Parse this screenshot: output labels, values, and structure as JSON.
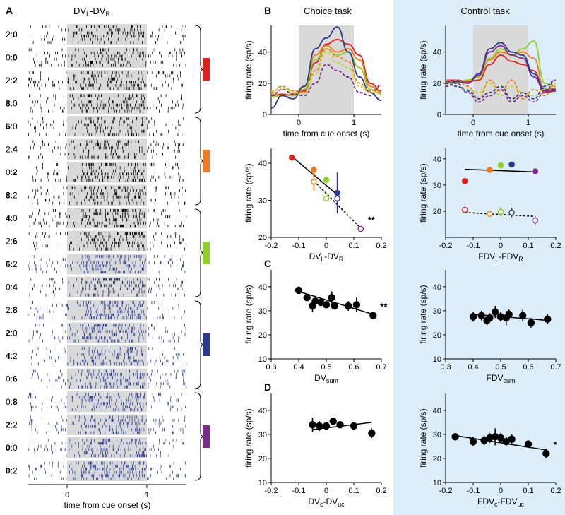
{
  "panel_letters": {
    "A": "A",
    "B": "B",
    "C": "C",
    "D": "D"
  },
  "raster": {
    "title_main": "DV",
    "title_sub1": "L",
    "title_mid": "-DV",
    "title_sub2": "R",
    "xlabel": "time from cue onset (s)",
    "xticks": [
      "0",
      "1"
    ],
    "rows": [
      {
        "a": "2:",
        "b": "0",
        "bold": "b",
        "color": "black"
      },
      {
        "a": "0:",
        "b": "0",
        "bold": "b",
        "color": "black"
      },
      {
        "a": "2:",
        "b": "2",
        "bold": "b",
        "color": "black"
      },
      {
        "a": "8",
        "b": ":0",
        "bold": "a",
        "color": "black"
      },
      {
        "a": "6",
        "b": ":0",
        "bold": "a",
        "color": "black"
      },
      {
        "a": "2:",
        "b": "4",
        "bold": "b",
        "color": "black"
      },
      {
        "a": "0:",
        "b": "2",
        "bold": "b",
        "color": "black"
      },
      {
        "a": "8",
        "b": ":2",
        "bold": "a",
        "color": "black"
      },
      {
        "a": "4",
        "b": ":0",
        "bold": "a",
        "color": "black"
      },
      {
        "a": "2:",
        "b": "6",
        "bold": "b",
        "color": "black"
      },
      {
        "a": "6",
        "b": ":2",
        "bold": "a",
        "color": "blue"
      },
      {
        "a": "0:",
        "b": "4",
        "bold": "b",
        "color": "mix"
      },
      {
        "a": "2:",
        "b": "8",
        "bold": "b",
        "color": "blue"
      },
      {
        "a": "2",
        "b": ":0",
        "bold": "a",
        "color": "blue"
      },
      {
        "a": "4",
        "b": ":2",
        "bold": "a",
        "color": "blue"
      },
      {
        "a": "0:",
        "b": "6",
        "bold": "b",
        "color": "blue"
      },
      {
        "a": "0:",
        "b": "8",
        "bold": "b",
        "color": "blue"
      },
      {
        "a": "2",
        "b": ":2",
        "bold": "a",
        "color": "blue"
      },
      {
        "a": "0",
        "b": ":0",
        "bold": "a",
        "color": "blue"
      },
      {
        "a": "0",
        "b": ":2",
        "bold": "a",
        "color": "blue"
      }
    ],
    "group_colors": [
      "#e0201c",
      "#ef7a1f",
      "#8fcf2a",
      "#2d3a8c",
      "#7b2c8b"
    ]
  },
  "colors": {
    "red": "#e0201c",
    "orange": "#ef7a1f",
    "green": "#8fcf2a",
    "blue": "#2d3a8c",
    "purple": "#7b2c8b",
    "lime": "#c2d629",
    "raster_blue": "#2b3e96",
    "control_bg": "#ddeefa",
    "shade": "#d9d9d9"
  },
  "headers": {
    "choice": "Choice task",
    "control": "Control task"
  },
  "chart_data": [
    {
      "id": "B-choice-psth",
      "type": "line",
      "title": "Choice task",
      "xlabel": "time from cue onset (s)",
      "ylabel": "firing rate (sp/s)",
      "xlim": [
        -0.5,
        1.5
      ],
      "ylim": [
        0,
        57
      ],
      "xticks": [
        0,
        1
      ],
      "yticks": [
        0,
        20,
        40
      ],
      "shaded_interval": [
        0,
        1
      ],
      "x": [
        -0.5,
        -0.3,
        -0.1,
        0.1,
        0.3,
        0.5,
        0.7,
        0.9,
        1.1,
        1.3,
        1.5
      ],
      "series": [
        {
          "name": "red solid",
          "color": "#e0201c",
          "dash": false,
          "values": [
            12,
            13,
            12,
            15,
            33,
            45,
            48,
            45,
            38,
            20,
            15
          ]
        },
        {
          "name": "orange solid",
          "color": "#ef7a1f",
          "dash": false,
          "values": [
            13,
            12,
            13,
            18,
            38,
            44,
            40,
            42,
            35,
            18,
            14
          ]
        },
        {
          "name": "green solid",
          "color": "#8fcf2a",
          "dash": false,
          "values": [
            11,
            12,
            12,
            16,
            35,
            42,
            38,
            40,
            30,
            16,
            13
          ]
        },
        {
          "name": "blue solid",
          "color": "#2d3a8c",
          "dash": false,
          "values": [
            4,
            12,
            10,
            18,
            42,
            49,
            56,
            40,
            24,
            14,
            9
          ]
        },
        {
          "name": "orange dashed",
          "color": "#ef7a1f",
          "dash": true,
          "values": [
            14,
            18,
            15,
            14,
            28,
            42,
            37,
            34,
            20,
            15,
            18
          ]
        },
        {
          "name": "lime dashed",
          "color": "#c2d629",
          "dash": true,
          "values": [
            15,
            17,
            14,
            13,
            26,
            40,
            33,
            30,
            18,
            14,
            16
          ]
        },
        {
          "name": "purple dashed",
          "color": "#7b2c8b",
          "dash": true,
          "values": [
            12,
            16,
            13,
            12,
            20,
            32,
            28,
            24,
            14,
            12,
            19
          ]
        }
      ]
    },
    {
      "id": "B-control-psth",
      "type": "line",
      "title": "Control task",
      "xlabel": "time from cue onset (s)",
      "ylabel": "firing rate (sp/s)",
      "xlim": [
        -0.5,
        1.5
      ],
      "ylim": [
        0,
        57
      ],
      "xticks": [
        0,
        1
      ],
      "yticks": [
        0,
        20,
        40
      ],
      "shaded_interval": [
        0,
        1
      ],
      "x": [
        -0.5,
        -0.3,
        -0.1,
        0.1,
        0.3,
        0.5,
        0.7,
        0.9,
        1.1,
        1.3,
        1.5
      ],
      "series": [
        {
          "name": "red solid",
          "color": "#e0201c",
          "dash": false,
          "values": [
            22,
            22,
            21,
            22,
            32,
            38,
            34,
            32,
            28,
            14,
            15
          ]
        },
        {
          "name": "orange solid",
          "color": "#ef7a1f",
          "dash": false,
          "values": [
            22,
            21,
            22,
            24,
            35,
            40,
            38,
            40,
            36,
            16,
            17
          ]
        },
        {
          "name": "green solid",
          "color": "#8fcf2a",
          "dash": false,
          "values": [
            21,
            20,
            22,
            24,
            36,
            42,
            38,
            42,
            47,
            20,
            18
          ]
        },
        {
          "name": "blue solid",
          "color": "#2d3a8c",
          "dash": false,
          "values": [
            20,
            21,
            20,
            26,
            42,
            46,
            40,
            38,
            26,
            16,
            16
          ]
        },
        {
          "name": "purple solid",
          "color": "#7b2c8b",
          "dash": false,
          "values": [
            21,
            22,
            20,
            25,
            40,
            44,
            38,
            36,
            24,
            15,
            15
          ]
        },
        {
          "name": "orange dashed",
          "color": "#ef7a1f",
          "dash": true,
          "values": [
            20,
            22,
            18,
            10,
            22,
            15,
            22,
            10,
            16,
            12,
            20
          ]
        },
        {
          "name": "lime dashed",
          "color": "#c2d629",
          "dash": true,
          "values": [
            19,
            20,
            16,
            14,
            20,
            12,
            18,
            14,
            12,
            16,
            20
          ]
        },
        {
          "name": "blue dashed",
          "color": "#2d3a8c",
          "dash": true,
          "values": [
            20,
            18,
            15,
            10,
            14,
            18,
            10,
            14,
            10,
            18,
            22
          ]
        },
        {
          "name": "purple dashed",
          "color": "#7b2c8b",
          "dash": true,
          "values": [
            18,
            20,
            14,
            8,
            12,
            16,
            8,
            12,
            8,
            14,
            22
          ]
        }
      ]
    },
    {
      "id": "B-choice-scatter",
      "type": "scatter",
      "xlabel": "DV",
      "xlabel_sub1": "L",
      "xlabel_mid": "-DV",
      "xlabel_sub2": "R",
      "ylabel": "firing rate (sp/s)",
      "xlim": [
        -0.2,
        0.2
      ],
      "ylim": [
        20,
        44
      ],
      "xticks": [
        -0.2,
        -0.1,
        0,
        0.1,
        0.2
      ],
      "yticks": [
        20,
        30,
        40
      ],
      "significance": "**",
      "points": [
        {
          "x": -0.125,
          "y": 41.5,
          "err": 0.4,
          "color": "#e0201c",
          "filled": true
        },
        {
          "x": -0.045,
          "y": 38.2,
          "err": 1.0,
          "color": "#ef7a1f",
          "filled": true
        },
        {
          "x": 0.0,
          "y": 35.5,
          "err": 0.9,
          "color": "#8fcf2a",
          "filled": true
        },
        {
          "x": 0.04,
          "y": 32.0,
          "err": 5.5,
          "color": "#2d3a8c",
          "filled": true
        },
        {
          "x": -0.045,
          "y": 35.0,
          "err": 2.5,
          "color": "#ef7a1f",
          "filled": false
        },
        {
          "x": 0.0,
          "y": 30.5,
          "err": 0.8,
          "color": "#8fcf2a",
          "filled": false
        },
        {
          "x": 0.04,
          "y": 30.5,
          "err": 1.0,
          "color": "#2d3a8c",
          "filled": false
        },
        {
          "x": 0.125,
          "y": 22.3,
          "err": 0.4,
          "color": "#7b2c8b",
          "filled": false
        }
      ],
      "fits": [
        {
          "x": [
            -0.125,
            0.04
          ],
          "y": [
            41.8,
            31.5
          ],
          "dash": false
        },
        {
          "x": [
            -0.045,
            0.125
          ],
          "y": [
            35.2,
            22.5
          ],
          "dash": true
        }
      ]
    },
    {
      "id": "B-control-scatter",
      "type": "scatter",
      "xlabel": "FDV",
      "xlabel_sub1": "L",
      "xlabel_mid": "-FDV",
      "xlabel_sub2": "R",
      "ylabel": "firing rate (sp/s)",
      "xlim": [
        -0.2,
        0.2
      ],
      "ylim": [
        10,
        44
      ],
      "xticks": [
        -0.2,
        -0.1,
        0,
        0.1,
        0.2
      ],
      "yticks": [
        20,
        30,
        40
      ],
      "points": [
        {
          "x": -0.13,
          "y": 31.5,
          "err": 1.0,
          "color": "#e0201c",
          "filled": true
        },
        {
          "x": -0.04,
          "y": 35.8,
          "err": 0.7,
          "color": "#ef7a1f",
          "filled": true
        },
        {
          "x": 0.0,
          "y": 37.5,
          "err": 0.8,
          "color": "#8fcf2a",
          "filled": true
        },
        {
          "x": 0.04,
          "y": 37.8,
          "err": 0.8,
          "color": "#2d3a8c",
          "filled": true
        },
        {
          "x": 0.125,
          "y": 35.2,
          "err": 1.0,
          "color": "#7b2c8b",
          "filled": true
        },
        {
          "x": -0.13,
          "y": 20.5,
          "err": 1.0,
          "color": "#e0201c",
          "filled": false
        },
        {
          "x": -0.04,
          "y": 19.0,
          "err": 1.0,
          "color": "#ef7a1f",
          "filled": false
        },
        {
          "x": 0.0,
          "y": 19.8,
          "err": 1.8,
          "color": "#8fcf2a",
          "filled": false
        },
        {
          "x": 0.04,
          "y": 19.5,
          "err": 1.8,
          "color": "#2d3a8c",
          "filled": false
        },
        {
          "x": 0.125,
          "y": 16.5,
          "err": 1.5,
          "color": "#7b2c8b",
          "filled": false
        }
      ],
      "fits": [
        {
          "x": [
            -0.13,
            0.125
          ],
          "y": [
            36.0,
            35.0
          ],
          "dash": false
        },
        {
          "x": [
            -0.13,
            0.125
          ],
          "y": [
            19.5,
            18.0
          ],
          "dash": true
        }
      ]
    },
    {
      "id": "C-choice",
      "type": "scatter",
      "xlabel": "DV",
      "xlabel_sub1": "sum",
      "ylabel": "firing rate (sp/s)",
      "xlim": [
        0.3,
        0.7
      ],
      "ylim": [
        10,
        47
      ],
      "xticks": [
        0.3,
        0.4,
        0.5,
        0.6,
        0.7
      ],
      "yticks": [
        10,
        20,
        30,
        40
      ],
      "significance": "**",
      "points": [
        {
          "x": 0.4,
          "y": 38.5,
          "err": 1.5
        },
        {
          "x": 0.43,
          "y": 35.5,
          "err": 1.5
        },
        {
          "x": 0.45,
          "y": 32.0,
          "err": 2.5
        },
        {
          "x": 0.46,
          "y": 34.0,
          "err": 1.5
        },
        {
          "x": 0.48,
          "y": 33.5,
          "err": 1.5
        },
        {
          "x": 0.5,
          "y": 32.5,
          "err": 1.5
        },
        {
          "x": 0.52,
          "y": 35.5,
          "err": 2.5
        },
        {
          "x": 0.53,
          "y": 32.0,
          "err": 1.5
        },
        {
          "x": 0.58,
          "y": 32.0,
          "err": 2.0
        },
        {
          "x": 0.61,
          "y": 32.5,
          "err": 3.0
        },
        {
          "x": 0.67,
          "y": 28.0,
          "err": 1.5
        }
      ],
      "fits": [
        {
          "x": [
            0.4,
            0.67
          ],
          "y": [
            38.0,
            28.5
          ],
          "dash": false
        }
      ]
    },
    {
      "id": "C-control",
      "type": "scatter",
      "xlabel": "FDV",
      "xlabel_sub1": "sum",
      "ylabel": "firing rate (sp/s)",
      "xlim": [
        0.3,
        0.7
      ],
      "ylim": [
        10,
        47
      ],
      "xticks": [
        0.3,
        0.4,
        0.5,
        0.6,
        0.7
      ],
      "yticks": [
        10,
        20,
        30,
        40
      ],
      "points": [
        {
          "x": 0.4,
          "y": 27.5,
          "err": 2.0
        },
        {
          "x": 0.43,
          "y": 28.0,
          "err": 2.0
        },
        {
          "x": 0.45,
          "y": 26.0,
          "err": 2.0
        },
        {
          "x": 0.46,
          "y": 27.0,
          "err": 2.0
        },
        {
          "x": 0.48,
          "y": 29.5,
          "err": 2.5
        },
        {
          "x": 0.5,
          "y": 27.5,
          "err": 2.0
        },
        {
          "x": 0.52,
          "y": 27.0,
          "err": 3.0
        },
        {
          "x": 0.53,
          "y": 28.5,
          "err": 2.0
        },
        {
          "x": 0.58,
          "y": 28.0,
          "err": 2.5
        },
        {
          "x": 0.61,
          "y": 25.0,
          "err": 2.0
        },
        {
          "x": 0.67,
          "y": 26.5,
          "err": 2.0
        }
      ],
      "fits": [
        {
          "x": [
            0.4,
            0.67
          ],
          "y": [
            28.5,
            26.0
          ],
          "dash": false
        }
      ]
    },
    {
      "id": "D-choice",
      "type": "scatter",
      "xlabel": "DV",
      "xlabel_sub1": "c",
      "xlabel_mid": "-DV",
      "xlabel_sub2": "uc",
      "ylabel": "firing rate (sp/s)",
      "xlim": [
        -0.2,
        0.2
      ],
      "ylim": [
        10,
        47
      ],
      "xticks": [
        -0.2,
        -0.1,
        0,
        0.1,
        0.2
      ],
      "yticks": [
        10,
        20,
        30,
        40
      ],
      "points": [
        {
          "x": -0.05,
          "y": 34.0,
          "err": 3.0
        },
        {
          "x": -0.025,
          "y": 33.5,
          "err": 2.0
        },
        {
          "x": 0.0,
          "y": 33.5,
          "err": 1.5
        },
        {
          "x": 0.025,
          "y": 35.5,
          "err": 1.5
        },
        {
          "x": 0.05,
          "y": 34.0,
          "err": 1.5
        },
        {
          "x": 0.1,
          "y": 33.5,
          "err": 1.5
        },
        {
          "x": 0.165,
          "y": 30.5,
          "err": 2.0
        }
      ],
      "fits": [
        {
          "x": [
            -0.05,
            0.165
          ],
          "y": [
            32.0,
            35.0
          ],
          "dash": false
        }
      ]
    },
    {
      "id": "D-control",
      "type": "scatter",
      "xlabel": "FDV",
      "xlabel_sub1": "c",
      "xlabel_mid": "-FDV",
      "xlabel_sub2": "uc",
      "ylabel": "firing rate (sp/s)",
      "xlim": [
        -0.2,
        0.2
      ],
      "ylim": [
        10,
        47
      ],
      "xticks": [
        -0.2,
        -0.1,
        0,
        0.1,
        0.2
      ],
      "yticks": [
        10,
        20,
        30,
        40
      ],
      "significance": "*",
      "points": [
        {
          "x": -0.165,
          "y": 29.0,
          "err": 1.5
        },
        {
          "x": -0.1,
          "y": 27.0,
          "err": 2.0
        },
        {
          "x": -0.06,
          "y": 27.5,
          "err": 2.0
        },
        {
          "x": -0.04,
          "y": 28.5,
          "err": 2.0
        },
        {
          "x": -0.02,
          "y": 29.0,
          "err": 3.5
        },
        {
          "x": 0.0,
          "y": 28.5,
          "err": 2.0
        },
        {
          "x": 0.02,
          "y": 27.0,
          "err": 2.0
        },
        {
          "x": 0.04,
          "y": 28.0,
          "err": 2.0
        },
        {
          "x": 0.1,
          "y": 26.0,
          "err": 1.5
        },
        {
          "x": 0.165,
          "y": 22.0,
          "err": 2.0
        }
      ],
      "fits": [
        {
          "x": [
            -0.165,
            0.165
          ],
          "y": [
            29.5,
            23.5
          ],
          "dash": false
        }
      ]
    }
  ]
}
